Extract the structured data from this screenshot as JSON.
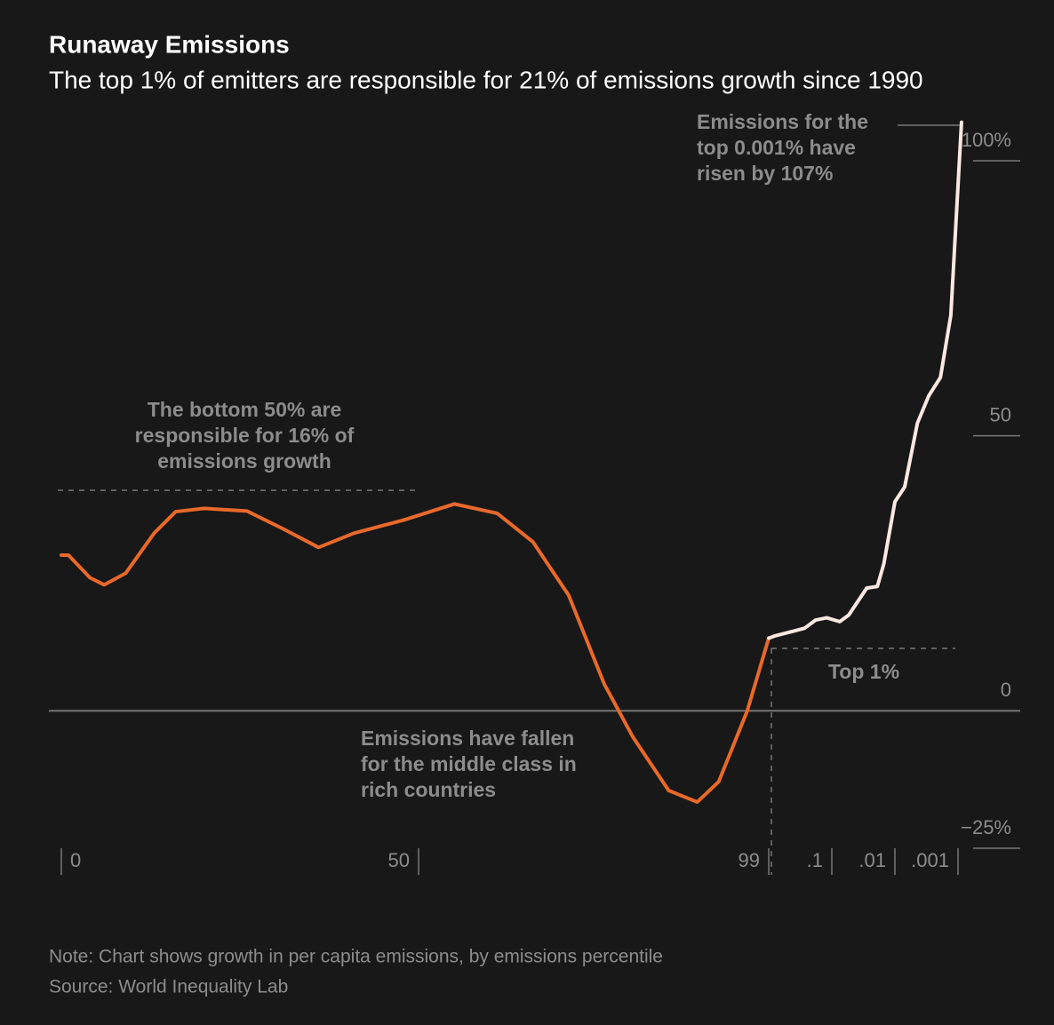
{
  "chart_data": {
    "type": "line",
    "title": "Runaway Emissions",
    "subtitle": "The top 1% of emitters are responsible for 21% of emissions growth since 1990",
    "series": [
      {
        "color": "#e8692a",
        "x": [
          0,
          1,
          4,
          6,
          9,
          13,
          16,
          20,
          26,
          31,
          36,
          41,
          48,
          55,
          61,
          66,
          71,
          76,
          80,
          85,
          89,
          92,
          96,
          99
        ],
        "values": [
          28.3,
          28.3,
          24.2,
          22.9,
          25.0,
          32.3,
          36.2,
          36.8,
          36.3,
          33.1,
          29.7,
          32.3,
          34.7,
          37.6,
          35.9,
          30.7,
          21.0,
          4.8,
          -4.8,
          -14.5,
          -16.6,
          -12.9,
          0,
          13.2
        ]
      },
      {
        "color": "#fbe8e0",
        "x": [
          99,
          99.2,
          99.73,
          99.82,
          99.88,
          99.925,
          99.946,
          99.972,
          99.981,
          99.985,
          99.99,
          99.993,
          99.9956,
          99.9971,
          99.9981,
          99.9987,
          99.99912
        ],
        "values": [
          13.2,
          13.6,
          15.0,
          16.5,
          16.9,
          16.2,
          17.4,
          22.3,
          22.6,
          26.7,
          38.0,
          40.7,
          52.3,
          57.3,
          60.6,
          71.9,
          107
        ]
      }
    ],
    "xlim": [
      0,
      100
    ],
    "xticks": [
      0,
      50,
      99,
      {
        "value": 99.9,
        "label": ".1"
      },
      {
        "value": 99.99,
        "label": ".01"
      },
      {
        "value": 99.999,
        "label": ".001"
      }
    ],
    "ylim": [
      -25,
      100
    ],
    "yticks": [
      {
        "value": 100,
        "label": "100%"
      },
      50,
      0,
      {
        "value": -25,
        "label": "−25%"
      }
    ],
    "annotations": [
      {
        "lines": [
          "Emissions for the",
          "top 0.001% have",
          "risen by 107%"
        ]
      },
      {
        "lines": [
          "The bottom 50% are",
          "responsible for 16% of",
          "emissions growth"
        ]
      },
      {
        "lines": [
          "Top 1%"
        ]
      },
      {
        "lines": [
          "Emissions have fallen",
          "for the middle class in",
          "rich countries"
        ]
      }
    ],
    "note": "Note: Chart shows growth in per capita emissions, by emissions percentile",
    "source": "Source: World Inequality Lab"
  }
}
